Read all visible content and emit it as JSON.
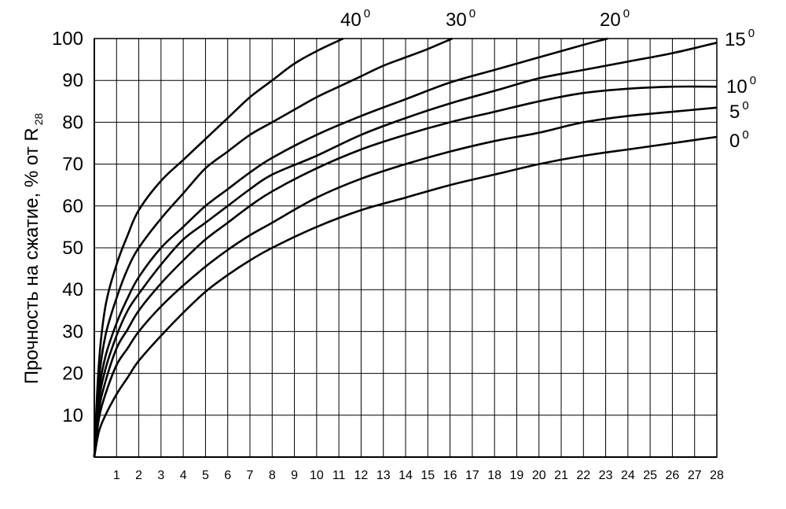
{
  "chart_data": {
    "type": "line",
    "title": "",
    "xlabel": "",
    "ylabel": "Прочность на сжатие, % от R",
    "ylabel_subscript": "28",
    "xlim": [
      0,
      28
    ],
    "ylim": [
      0,
      100
    ],
    "x_ticks": [
      "1",
      "2",
      "3",
      "4",
      "5",
      "6",
      "7",
      "8",
      "9",
      "10",
      "11",
      "12",
      "13",
      "14",
      "15",
      "16",
      "17",
      "18",
      "19",
      "20",
      "21",
      "22",
      "23",
      "24",
      "25",
      "26",
      "27",
      "28"
    ],
    "y_ticks": [
      "10",
      "20",
      "30",
      "40",
      "50",
      "60",
      "70",
      "80",
      "90",
      "100"
    ],
    "grid": true,
    "series": [
      {
        "name": "40",
        "unit": "0",
        "x": [
          0,
          0.2,
          0.5,
          1,
          1.5,
          2,
          3,
          4,
          5,
          6,
          7,
          8,
          9,
          10,
          11.2
        ],
        "values": [
          0,
          22,
          36,
          46,
          53,
          59,
          66,
          71,
          76,
          81,
          86,
          90,
          94,
          97,
          100
        ]
      },
      {
        "name": "30",
        "unit": "0",
        "x": [
          0,
          0.2,
          0.5,
          1,
          1.5,
          2,
          3,
          4,
          5,
          6,
          7,
          8,
          9,
          10,
          11,
          12,
          13,
          14,
          15,
          16.1
        ],
        "values": [
          0,
          18,
          29,
          38,
          45,
          50,
          57,
          63,
          69,
          73,
          77,
          80,
          83,
          86,
          88.5,
          91,
          93.5,
          95.5,
          97.5,
          100
        ]
      },
      {
        "name": "20",
        "unit": "0",
        "x": [
          0,
          0.2,
          0.5,
          1,
          1.5,
          2,
          3,
          4,
          5,
          6,
          7,
          8,
          10,
          12,
          14,
          16,
          18,
          20,
          22,
          23.1
        ],
        "values": [
          0,
          15,
          24,
          32,
          38,
          43,
          50,
          55,
          60,
          64,
          68,
          71.5,
          77,
          81.5,
          85.5,
          89.5,
          92.5,
          95.5,
          98.5,
          100
        ]
      },
      {
        "name": "15",
        "unit": "0",
        "x": [
          0,
          0.2,
          0.5,
          1,
          1.5,
          2,
          3,
          4,
          5,
          6,
          7,
          8,
          10,
          12,
          14,
          16,
          18,
          20,
          22,
          24,
          26,
          28
        ],
        "values": [
          0,
          13,
          21,
          29,
          35,
          39,
          46,
          52,
          56,
          60,
          64,
          67.5,
          72,
          77,
          81,
          84.5,
          87.5,
          90.5,
          92.5,
          94.5,
          96.5,
          99
        ]
      },
      {
        "name": "10",
        "unit": "0",
        "x": [
          0,
          0.2,
          0.5,
          1,
          1.5,
          2,
          3,
          4,
          5,
          6,
          7,
          8,
          10,
          12,
          14,
          16,
          18,
          20,
          22,
          24,
          26,
          28
        ],
        "values": [
          0,
          11,
          18,
          26,
          30.5,
          35,
          41.5,
          47,
          52,
          56,
          60,
          63.5,
          69,
          73.5,
          77,
          80,
          82.5,
          85,
          87,
          88,
          88.5,
          88.5
        ]
      },
      {
        "name": "5",
        "unit": "0",
        "x": [
          0,
          0.2,
          0.5,
          1,
          1.5,
          2,
          3,
          4,
          5,
          6,
          7,
          8,
          10,
          12,
          14,
          16,
          18,
          20,
          22,
          24,
          26,
          28
        ],
        "values": [
          0,
          9,
          15,
          22,
          26,
          30,
          36,
          41,
          45.5,
          49.5,
          53,
          56,
          62,
          66.5,
          70,
          73,
          75.5,
          77.5,
          80,
          81.5,
          82.5,
          83.5
        ]
      },
      {
        "name": "0",
        "unit": "0",
        "x": [
          0,
          0.2,
          0.5,
          1,
          1.5,
          2,
          3,
          4,
          5,
          6,
          7,
          8,
          10,
          12,
          14,
          16,
          18,
          20,
          22,
          24,
          26,
          28
        ],
        "values": [
          0,
          6,
          10,
          15,
          19,
          23,
          29,
          34.5,
          39.5,
          43.5,
          47,
          50,
          55,
          59,
          62,
          65,
          67.5,
          70,
          72,
          73.5,
          75,
          76.5
        ]
      }
    ]
  }
}
